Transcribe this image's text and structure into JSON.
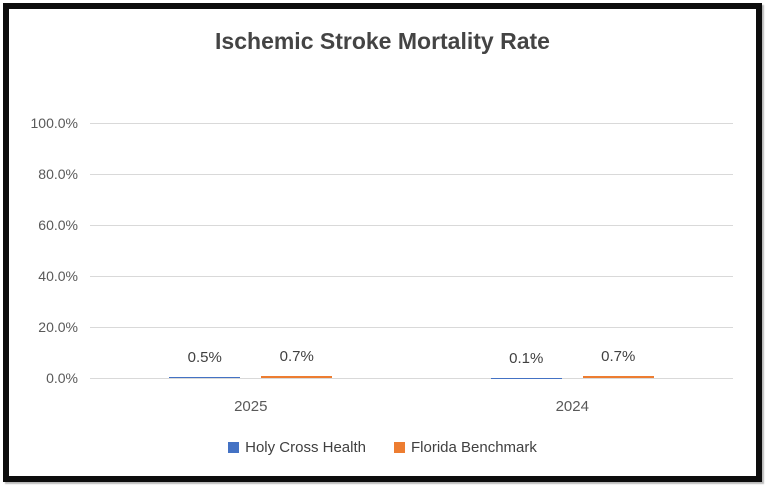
{
  "chart_data": {
    "type": "bar",
    "title": "Ischemic Stroke Mortality Rate",
    "categories": [
      "2025",
      "2024"
    ],
    "series": [
      {
        "name": "Holy Cross Health",
        "color": "#4472C4",
        "values": [
          0.5,
          0.1
        ],
        "data_labels": [
          "0.5%",
          "0.1%"
        ]
      },
      {
        "name": "Florida Benchmark",
        "color": "#ED7D31",
        "values": [
          0.7,
          0.7
        ],
        "data_labels": [
          "0.7%",
          "0.7%"
        ]
      }
    ],
    "xlabel": "",
    "ylabel": "",
    "ylim": [
      0,
      100
    ],
    "yticks": [
      0,
      20,
      40,
      60,
      80,
      100
    ],
    "ytick_labels": [
      "0.0%",
      "20.0%",
      "40.0%",
      "60.0%",
      "80.0%",
      "100.0%"
    ],
    "grid": true,
    "legend_position": "bottom"
  },
  "style": {
    "title_color": "#444444",
    "axis_label_color": "#595959",
    "data_label_color": "#404040",
    "gridline_color": "#D9D9D9",
    "series_blue": "#4472C4",
    "series_orange": "#ED7D31",
    "frame_border_color": "#0D0D0D",
    "background": "#FFFFFF"
  }
}
